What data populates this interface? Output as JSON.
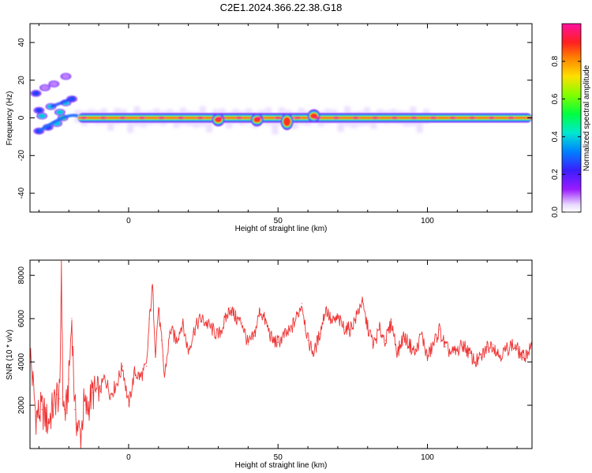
{
  "title": "C2E1.2024.366.22.38.G18",
  "chart_data": [
    {
      "type": "heatmap",
      "xlabel": "Height of straight line (km)",
      "ylabel": "Frequency (Hz)",
      "xlim": [
        -33,
        135
      ],
      "ylim": [
        -50,
        50
      ],
      "x_ticks": [
        0,
        50,
        100
      ],
      "y_ticks": [
        -40,
        -20,
        0,
        20,
        40
      ],
      "colorbar": {
        "label": "Normalized spectral amplitude",
        "range": [
          0.0,
          1.0
        ],
        "ticks": [
          "0.0",
          "0.2",
          "0.4",
          "0.6",
          "0.8"
        ],
        "tick_values": [
          0.0,
          0.2,
          0.4,
          0.6,
          0.8
        ]
      },
      "main_ridge": {
        "frequency_hz": 0,
        "x_start": -17,
        "x_end": 135,
        "dips": [
          {
            "x": 30,
            "frequency_hz": -2
          },
          {
            "x": 43,
            "frequency_hz": -2
          },
          {
            "x": 53,
            "frequency_hz": -4
          },
          {
            "x": 62,
            "frequency_hz": 2
          }
        ]
      },
      "scattered_blobs": [
        {
          "x": -31,
          "frequency_hz": 13,
          "amp": 0.3
        },
        {
          "x": -30,
          "frequency_hz": 4,
          "amp": 0.35
        },
        {
          "x": -28,
          "frequency_hz": 16,
          "amp": 0.1
        },
        {
          "x": -25,
          "frequency_hz": 18,
          "amp": 0.05
        },
        {
          "x": -21,
          "frequency_hz": 22,
          "amp": 0.05
        },
        {
          "x": -30,
          "frequency_hz": -7,
          "amp": 0.3
        },
        {
          "x": -27,
          "frequency_hz": -5,
          "amp": 0.35
        },
        {
          "x": -24,
          "frequency_hz": -3,
          "amp": 0.4
        },
        {
          "x": -26,
          "frequency_hz": 6,
          "amp": 0.45
        },
        {
          "x": -23,
          "frequency_hz": 3,
          "amp": 0.45
        },
        {
          "x": -21,
          "frequency_hz": 8,
          "amp": 0.4
        },
        {
          "x": -19,
          "frequency_hz": 10,
          "amp": 0.35
        },
        {
          "x": -22,
          "frequency_hz": 0,
          "amp": 0.5
        },
        {
          "x": -29,
          "frequency_hz": 1,
          "amp": 0.4
        }
      ]
    },
    {
      "type": "line",
      "xlabel": "Height of straight line (km)",
      "ylabel": "SNR (10 * v/v)",
      "xlim": [
        -33,
        135
      ],
      "ylim": [
        0,
        8700
      ],
      "x_ticks": [
        0,
        50,
        100
      ],
      "y_ticks": [
        2000,
        4000,
        6000,
        8000
      ],
      "color": "#ee3333",
      "series": [
        {
          "x": [
            -33,
            -31,
            -29,
            -27,
            -25,
            -24,
            -23,
            -22.5,
            -22,
            -21.5,
            -21,
            -20,
            -19,
            -18,
            -17,
            -16,
            -15,
            -14,
            -12,
            -10,
            -8,
            -6,
            -4,
            -2,
            0,
            2,
            4,
            6,
            7,
            8,
            9,
            10,
            11,
            12,
            14,
            16,
            18,
            20,
            22,
            24,
            26,
            28,
            30,
            32,
            34,
            36,
            38,
            40,
            42,
            44,
            46,
            48,
            50,
            52,
            54,
            56,
            58,
            60,
            62,
            64,
            66,
            68,
            70,
            72,
            74,
            76,
            78,
            80,
            82,
            84,
            86,
            88,
            90,
            92,
            94,
            96,
            98,
            100,
            102,
            104,
            106,
            108,
            110,
            112,
            114,
            116,
            118,
            120,
            122,
            124,
            126,
            128,
            130,
            132,
            135
          ],
          "y": [
            4500,
            1500,
            1800,
            1200,
            2000,
            2500,
            2300,
            8650,
            2400,
            1800,
            1600,
            3200,
            6000,
            1800,
            1000,
            600,
            2000,
            1800,
            2600,
            2500,
            3300,
            2500,
            3000,
            3800,
            2000,
            3500,
            3300,
            3800,
            6000,
            7500,
            4500,
            6500,
            5000,
            3300,
            5500,
            5000,
            5800,
            4500,
            5500,
            6000,
            5800,
            5500,
            5200,
            5800,
            6500,
            6000,
            5800,
            4800,
            5200,
            6400,
            5800,
            5000,
            4900,
            5200,
            5400,
            6000,
            6700,
            5000,
            4400,
            5300,
            6500,
            5800,
            6000,
            5600,
            5500,
            6000,
            6800,
            5600,
            4800,
            5500,
            5000,
            5800,
            4400,
            5200,
            4800,
            4400,
            5300,
            4200,
            4800,
            5500,
            4700,
            4400,
            4500,
            4800,
            4400,
            4000,
            4200,
            4700,
            4800,
            4300,
            4500,
            4800,
            4600,
            4200,
            4700
          ]
        }
      ]
    }
  ]
}
